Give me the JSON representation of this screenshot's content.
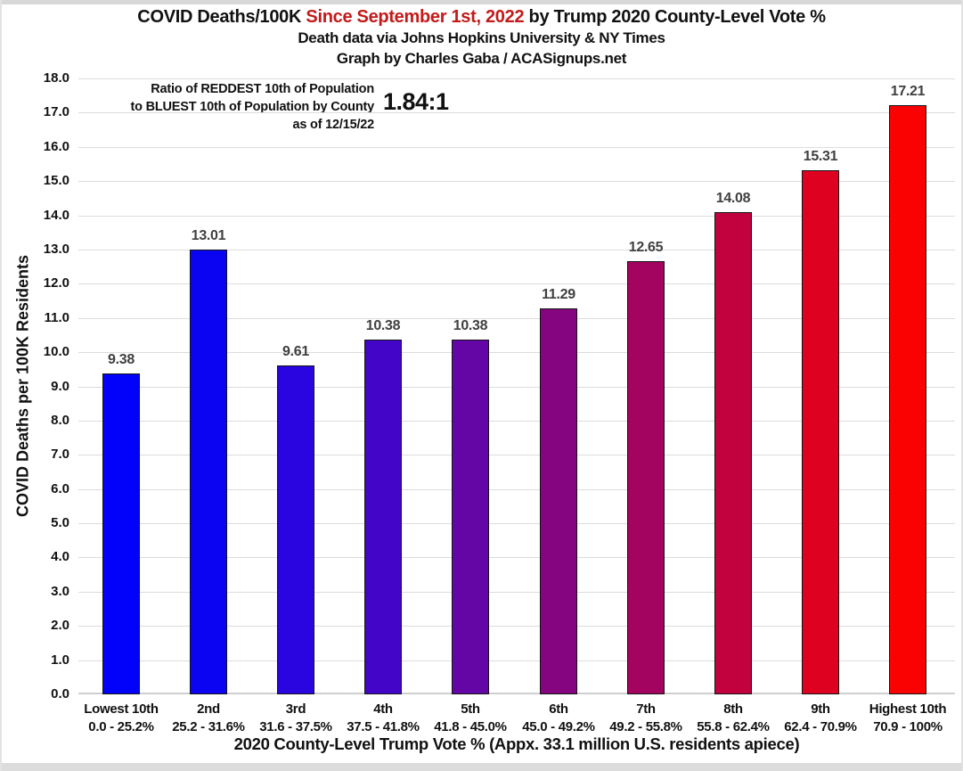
{
  "header": {
    "title_part1": "COVID Deaths/100K ",
    "title_highlight": "Since September 1st, 2022",
    "title_part2": " by Trump 2020 County-Level Vote %",
    "subtitle": "Death data via Johns Hopkins University & NY Times",
    "credit": "Graph by Charles Gaba / ACASignups.net"
  },
  "annotation": {
    "line1": "Ratio of REDDEST 10th of Population",
    "line2": "to BLUEST 10th of Population by County",
    "line3": "as of 12/15/22",
    "ratio_value": "1.84:1"
  },
  "colors": {
    "title_highlight": "#c41a1a",
    "gridline": "#dcdcdc",
    "bar_border": "#141414",
    "data_label": "#3f3f3f",
    "frame": "#d8d8d8"
  },
  "chart_data": {
    "type": "bar",
    "title": "COVID Deaths/100K Since September 1st, 2022 by Trump 2020 County-Level Vote %",
    "xlabel": "2020 County-Level Trump Vote % (Appx. 33.1 million U.S. residents apiece)",
    "ylabel": "COVID Deaths per 100K Residents",
    "ylim": [
      0,
      18
    ],
    "ytick_step": 1.0,
    "grid": true,
    "legend": "none",
    "categories": [
      "Lowest 10th",
      "2nd",
      "3rd",
      "4th",
      "5th",
      "6th",
      "7th",
      "8th",
      "9th",
      "Highest 10th"
    ],
    "category_ranges": [
      "0.0 - 25.2%",
      "25.2 - 31.6%",
      "31.6 - 37.5%",
      "37.5 - 41.8%",
      "41.8 - 45.0%",
      "45.0 - 49.2%",
      "49.2 - 55.8%",
      "55.8 - 62.4%",
      "62.4 - 70.9%",
      "70.9 - 100%"
    ],
    "values": [
      9.38,
      13.01,
      9.61,
      10.38,
      10.38,
      11.29,
      12.65,
      14.08,
      15.31,
      17.21
    ],
    "bar_colors": [
      "#0202fb",
      "#0b04f2",
      "#2a05e0",
      "#4306c8",
      "#6306a5",
      "#850480",
      "#a30460",
      "#c1023f",
      "#df0220",
      "#fb0202"
    ]
  }
}
